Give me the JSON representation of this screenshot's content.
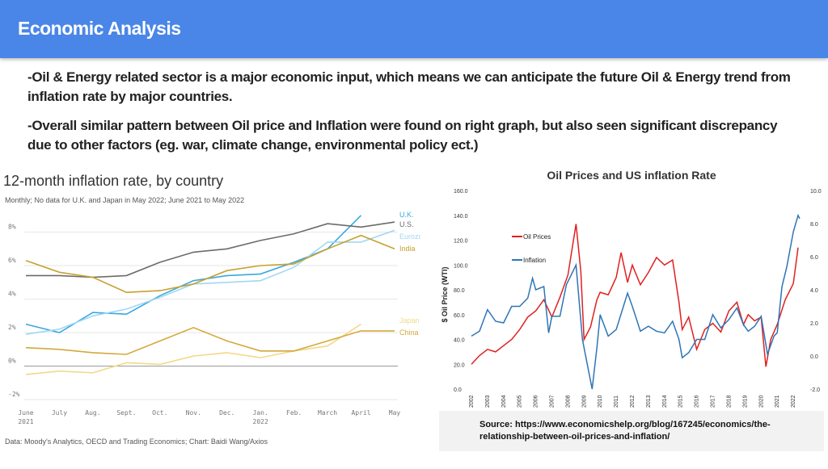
{
  "header": {
    "title": "Economic Analysis"
  },
  "bullets": [
    "-Oil & Energy related sector is a major economic input, which means we can anticipate the future Oil & Energy trend from inflation rate by major countries.",
    "-Overall similar pattern between Oil price and Inflation were found on right graph, but also seen significant discrepancy due to other factors (eg. war, climate change, environmental policy ect.)"
  ],
  "source": {
    "text": "Source: https://www.economicshelp.org/blog/167245/economics/the-relationship-between-oil-prices-and-inflation/"
  },
  "chart_data": [
    {
      "type": "line",
      "title": "12-month inflation rate, by country",
      "subtitle": "Monthly; No data for U.K. and Japan in May 2022; June 2021 to May 2022",
      "footer": "Data: Moody's Analytics, OECD and Trading Economics; Chart: Baidi Wang/Axios",
      "x_labels": [
        "June\n2021",
        "July",
        "Aug.",
        "Sept.",
        "Oct.",
        "Nov.",
        "Dec.",
        "Jan.\n2022",
        "Feb.",
        "March",
        "April",
        "May"
      ],
      "y_ticks": [
        "8%",
        "6%",
        "4%",
        "2%",
        "0%",
        "-2%"
      ],
      "ylim": [
        -2,
        10
      ],
      "series": [
        {
          "name": "U.K.",
          "color": "#3aa8de",
          "values": [
            2.5,
            2.0,
            3.2,
            3.1,
            4.2,
            5.1,
            5.4,
            5.5,
            6.2,
            7.0,
            9.0,
            null
          ]
        },
        {
          "name": "U.S.",
          "color": "#6b6b6b",
          "values": [
            5.4,
            5.4,
            5.3,
            5.4,
            6.2,
            6.8,
            7.0,
            7.5,
            7.9,
            8.5,
            8.3,
            8.6
          ]
        },
        {
          "name": "Eurozone",
          "color": "#9fd8f2",
          "values": [
            1.9,
            2.2,
            3.0,
            3.4,
            4.1,
            4.9,
            5.0,
            5.1,
            5.9,
            7.4,
            7.4,
            8.1
          ]
        },
        {
          "name": "India",
          "color": "#c8a030",
          "values": [
            6.3,
            5.6,
            5.3,
            4.4,
            4.5,
            4.9,
            5.7,
            6.0,
            6.1,
            7.0,
            7.8,
            7.0
          ]
        },
        {
          "name": "Japan",
          "color": "#f3d98a",
          "values": [
            -0.5,
            -0.3,
            -0.4,
            0.2,
            0.1,
            0.6,
            0.8,
            0.5,
            0.9,
            1.2,
            2.5,
            null
          ]
        },
        {
          "name": "China",
          "color": "#d4a93a",
          "values": [
            1.1,
            1.0,
            0.8,
            0.7,
            1.5,
            2.3,
            1.5,
            0.9,
            0.9,
            1.5,
            2.1,
            2.1
          ]
        }
      ]
    },
    {
      "type": "line",
      "title": "Oil Prices and US inflation Rate",
      "ylabel": "$ Oil Price (WTI)",
      "left_ticks": [
        "160.0",
        "140.0",
        "120.0",
        "100.0",
        "80.0",
        "60.0",
        "40.0",
        "20.0",
        "0.0"
      ],
      "right_ticks": [
        "10.0",
        "8.0",
        "6.0",
        "4.0",
        "2.0",
        "0.0",
        "-2.0"
      ],
      "left_lim": [
        0,
        160
      ],
      "right_lim": [
        -2,
        10
      ],
      "x_years": [
        "2002",
        "2003",
        "2004",
        "2005",
        "2006",
        "2007",
        "2008",
        "2009",
        "2010",
        "2011",
        "2012",
        "2013",
        "2014",
        "2015",
        "2016",
        "2017",
        "2018",
        "2019",
        "2020",
        "2021",
        "2022"
      ],
      "series": [
        {
          "name": "Oil Prices",
          "color": "#e02020",
          "axis": "left",
          "points": [
            [
              2002.0,
              20
            ],
            [
              2002.5,
              27
            ],
            [
              2003.0,
              32
            ],
            [
              2003.5,
              30
            ],
            [
              2004.0,
              35
            ],
            [
              2004.5,
              40
            ],
            [
              2005.0,
              48
            ],
            [
              2005.5,
              58
            ],
            [
              2006.0,
              63
            ],
            [
              2006.5,
              72
            ],
            [
              2007.0,
              58
            ],
            [
              2007.5,
              74
            ],
            [
              2008.0,
              92
            ],
            [
              2008.5,
              133
            ],
            [
              2008.8,
              95
            ],
            [
              2009.0,
              40
            ],
            [
              2009.4,
              50
            ],
            [
              2009.8,
              72
            ],
            [
              2010.0,
              78
            ],
            [
              2010.5,
              76
            ],
            [
              2011.0,
              90
            ],
            [
              2011.3,
              110
            ],
            [
              2011.7,
              86
            ],
            [
              2012.0,
              100
            ],
            [
              2012.5,
              84
            ],
            [
              2013.0,
              94
            ],
            [
              2013.5,
              106
            ],
            [
              2014.0,
              100
            ],
            [
              2014.5,
              104
            ],
            [
              2014.9,
              70
            ],
            [
              2015.1,
              48
            ],
            [
              2015.5,
              58
            ],
            [
              2016.0,
              32
            ],
            [
              2016.5,
              48
            ],
            [
              2017.0,
              53
            ],
            [
              2017.5,
              46
            ],
            [
              2018.0,
              63
            ],
            [
              2018.5,
              70
            ],
            [
              2018.9,
              52
            ],
            [
              2019.2,
              60
            ],
            [
              2019.6,
              55
            ],
            [
              2020.0,
              58
            ],
            [
              2020.3,
              18
            ],
            [
              2020.6,
              40
            ],
            [
              2021.0,
              52
            ],
            [
              2021.5,
              72
            ],
            [
              2022.0,
              85
            ],
            [
              2022.3,
              114
            ]
          ]
        },
        {
          "name": "Inflation",
          "color": "#2e75b6",
          "axis": "right",
          "points": [
            [
              2002.0,
              1.2
            ],
            [
              2002.5,
              1.5
            ],
            [
              2003.0,
              2.8
            ],
            [
              2003.5,
              2.1
            ],
            [
              2004.0,
              2.0
            ],
            [
              2004.5,
              3.0
            ],
            [
              2005.0,
              3.0
            ],
            [
              2005.5,
              3.5
            ],
            [
              2005.8,
              4.7
            ],
            [
              2006.0,
              4.0
            ],
            [
              2006.5,
              4.2
            ],
            [
              2006.8,
              1.4
            ],
            [
              2007.0,
              2.4
            ],
            [
              2007.5,
              2.4
            ],
            [
              2007.9,
              4.3
            ],
            [
              2008.5,
              5.5
            ],
            [
              2008.9,
              1.0
            ],
            [
              2009.2,
              -0.5
            ],
            [
              2009.5,
              -2.0
            ],
            [
              2009.8,
              0.5
            ],
            [
              2010.0,
              2.5
            ],
            [
              2010.5,
              1.2
            ],
            [
              2011.0,
              1.6
            ],
            [
              2011.7,
              3.8
            ],
            [
              2012.0,
              3.0
            ],
            [
              2012.5,
              1.5
            ],
            [
              2013.0,
              1.8
            ],
            [
              2013.5,
              1.5
            ],
            [
              2014.0,
              1.4
            ],
            [
              2014.5,
              2.1
            ],
            [
              2014.9,
              1.0
            ],
            [
              2015.1,
              -0.1
            ],
            [
              2015.5,
              0.2
            ],
            [
              2016.0,
              1.0
            ],
            [
              2016.5,
              1.0
            ],
            [
              2017.0,
              2.5
            ],
            [
              2017.5,
              1.7
            ],
            [
              2018.0,
              2.2
            ],
            [
              2018.5,
              2.9
            ],
            [
              2018.9,
              1.9
            ],
            [
              2019.2,
              1.5
            ],
            [
              2019.6,
              1.8
            ],
            [
              2020.0,
              2.4
            ],
            [
              2020.4,
              0.1
            ],
            [
              2020.8,
              1.2
            ],
            [
              2021.0,
              1.4
            ],
            [
              2021.3,
              4.2
            ],
            [
              2021.6,
              5.4
            ],
            [
              2022.0,
              7.5
            ],
            [
              2022.3,
              8.5
            ],
            [
              2022.4,
              8.3
            ]
          ]
        }
      ]
    }
  ]
}
